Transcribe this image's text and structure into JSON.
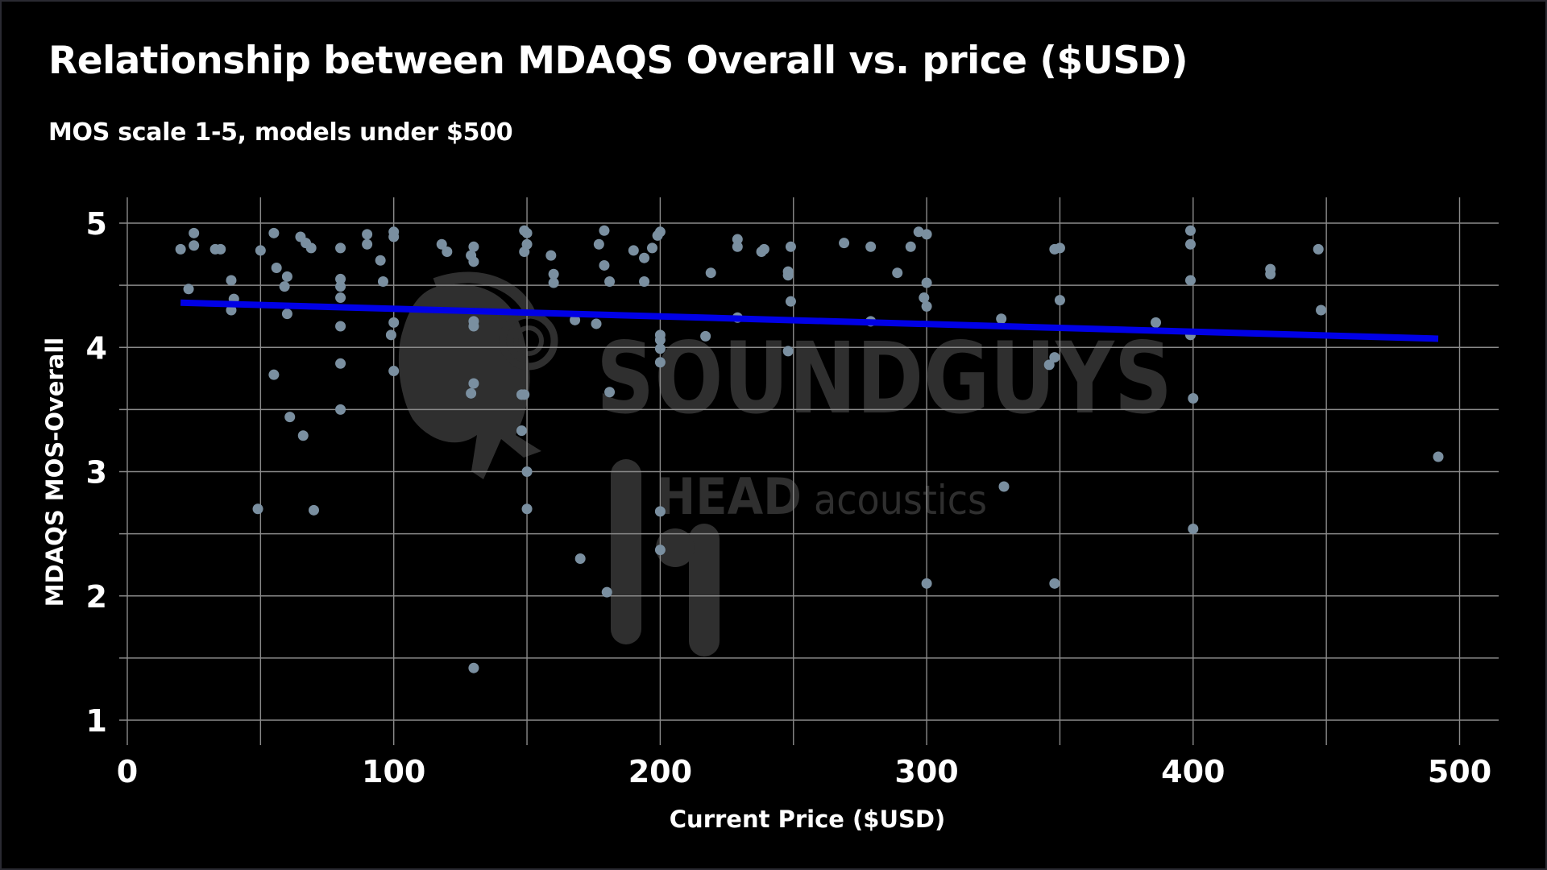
{
  "header": {
    "title": "Relationship between MDAQS Overall vs. price ($USD)",
    "subtitle": "MOS scale 1-5, models under $500"
  },
  "watermark": {
    "brand": "SOUNDGUYS",
    "partner_bold": "HEAD",
    "partner_light": "acoustics"
  },
  "colors": {
    "background": "#000000",
    "grid": "#8a8a8a",
    "points": "#7a8fa0",
    "trendline": "#0000e6",
    "text": "#ffffff",
    "watermark": "#2f2f2f"
  },
  "chart_data": {
    "type": "scatter",
    "title": "Relationship between MDAQS Overall vs. price ($USD)",
    "subtitle": "MOS scale 1-5, models under $500",
    "xlabel": "Current Price ($USD)",
    "ylabel": "MDAQS MOS-Overall",
    "xlim": [
      -4,
      535
    ],
    "ylim": [
      0.75,
      5.2
    ],
    "x_ticks": [
      0,
      100,
      200,
      300,
      400,
      500
    ],
    "y_ticks": [
      1,
      2,
      3,
      4,
      5
    ],
    "x_minor_grid": [
      50,
      150,
      250,
      350,
      450
    ],
    "y_minor_grid": [
      1.5,
      2.5,
      3.5,
      4.5
    ],
    "grid": true,
    "legend": null,
    "trendline": {
      "type": "linear",
      "x": [
        20,
        492
      ],
      "y": [
        4.36,
        4.07
      ]
    },
    "points": [
      [
        20,
        4.79
      ],
      [
        23,
        4.47
      ],
      [
        25,
        4.92
      ],
      [
        25,
        4.82
      ],
      [
        33,
        4.79
      ],
      [
        35,
        4.79
      ],
      [
        39,
        4.54
      ],
      [
        40,
        4.39
      ],
      [
        39,
        4.3
      ],
      [
        49,
        2.7
      ],
      [
        50,
        4.78
      ],
      [
        55,
        4.92
      ],
      [
        56,
        4.64
      ],
      [
        55,
        3.78
      ],
      [
        59,
        4.49
      ],
      [
        60,
        4.57
      ],
      [
        60,
        4.27
      ],
      [
        61,
        3.44
      ],
      [
        65,
        4.89
      ],
      [
        67,
        4.84
      ],
      [
        69,
        4.8
      ],
      [
        66,
        3.29
      ],
      [
        70,
        2.69
      ],
      [
        80,
        4.8
      ],
      [
        80,
        4.55
      ],
      [
        80,
        4.49
      ],
      [
        80,
        4.4
      ],
      [
        80,
        4.17
      ],
      [
        80,
        3.87
      ],
      [
        80,
        3.5
      ],
      [
        90,
        4.91
      ],
      [
        90,
        4.83
      ],
      [
        95,
        4.7
      ],
      [
        96,
        4.53
      ],
      [
        100,
        4.93
      ],
      [
        100,
        4.89
      ],
      [
        100,
        4.2
      ],
      [
        99,
        4.1
      ],
      [
        100,
        3.81
      ],
      [
        118,
        4.83
      ],
      [
        120,
        4.77
      ],
      [
        130,
        4.81
      ],
      [
        129,
        4.74
      ],
      [
        130,
        4.69
      ],
      [
        130,
        4.21
      ],
      [
        130,
        4.17
      ],
      [
        130,
        3.71
      ],
      [
        129,
        3.63
      ],
      [
        130,
        1.42
      ],
      [
        149,
        4.94
      ],
      [
        150,
        4.92
      ],
      [
        150,
        4.83
      ],
      [
        149,
        4.77
      ],
      [
        148,
        3.62
      ],
      [
        149,
        3.62
      ],
      [
        148,
        3.33
      ],
      [
        150,
        3.0
      ],
      [
        150,
        2.7
      ],
      [
        159,
        4.74
      ],
      [
        160,
        4.59
      ],
      [
        160,
        4.52
      ],
      [
        168,
        4.22
      ],
      [
        170,
        2.3
      ],
      [
        176,
        4.19
      ],
      [
        177,
        4.83
      ],
      [
        179,
        4.94
      ],
      [
        179,
        4.66
      ],
      [
        181,
        4.53
      ],
      [
        181,
        3.64
      ],
      [
        180,
        2.03
      ],
      [
        190,
        4.78
      ],
      [
        194,
        4.72
      ],
      [
        194,
        4.53
      ],
      [
        197,
        4.8
      ],
      [
        199,
        4.9
      ],
      [
        200,
        4.93
      ],
      [
        200,
        4.1
      ],
      [
        200,
        4.06
      ],
      [
        200,
        3.99
      ],
      [
        200,
        3.88
      ],
      [
        200,
        2.68
      ],
      [
        200,
        2.37
      ],
      [
        217,
        4.09
      ],
      [
        219,
        4.6
      ],
      [
        229,
        4.87
      ],
      [
        229,
        4.81
      ],
      [
        229,
        4.24
      ],
      [
        238,
        4.77
      ],
      [
        239,
        4.79
      ],
      [
        248,
        4.61
      ],
      [
        248,
        4.58
      ],
      [
        248,
        3.97
      ],
      [
        249,
        4.81
      ],
      [
        249,
        4.37
      ],
      [
        269,
        4.84
      ],
      [
        279,
        4.81
      ],
      [
        279,
        4.21
      ],
      [
        289,
        4.6
      ],
      [
        294,
        4.81
      ],
      [
        297,
        4.93
      ],
      [
        300,
        4.91
      ],
      [
        300,
        4.52
      ],
      [
        299,
        4.4
      ],
      [
        300,
        4.33
      ],
      [
        300,
        2.1
      ],
      [
        328,
        4.23
      ],
      [
        329,
        2.88
      ],
      [
        346,
        3.86
      ],
      [
        348,
        3.92
      ],
      [
        348,
        4.79
      ],
      [
        350,
        4.8
      ],
      [
        350,
        4.38
      ],
      [
        348,
        2.1
      ],
      [
        386,
        4.2
      ],
      [
        399,
        4.94
      ],
      [
        399,
        4.83
      ],
      [
        399,
        4.54
      ],
      [
        399,
        4.1
      ],
      [
        400,
        3.59
      ],
      [
        400,
        2.54
      ],
      [
        429,
        4.63
      ],
      [
        429,
        4.59
      ],
      [
        447,
        4.79
      ],
      [
        448,
        4.3
      ],
      [
        492,
        3.12
      ]
    ]
  }
}
